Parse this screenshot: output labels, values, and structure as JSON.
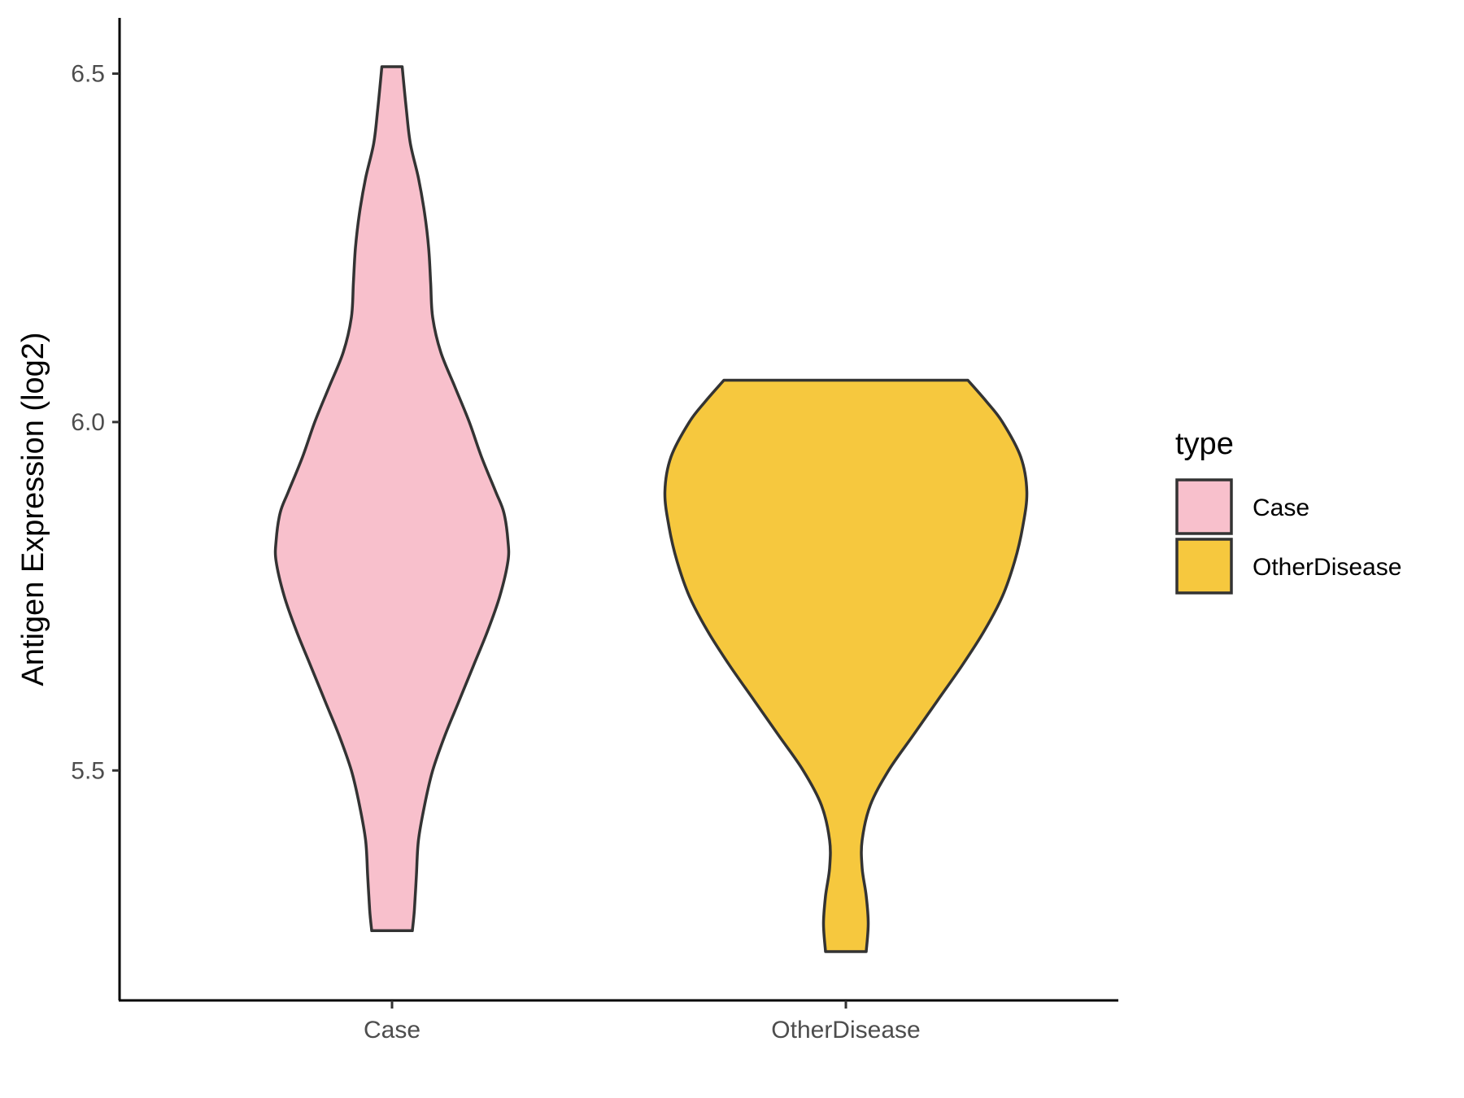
{
  "chart_data": {
    "type": "violin",
    "ylabel": "Antigen Expression (log2)",
    "xlabel": "",
    "ylim": [
      5.17,
      6.58
    ],
    "yticks": [
      5.5,
      6.0,
      6.5
    ],
    "ytick_labels": [
      "5.5",
      "6.0",
      "6.5"
    ],
    "categories": [
      "Case",
      "OtherDisease"
    ],
    "legend": {
      "title": "type",
      "position": "right",
      "entries": [
        {
          "label": "Case",
          "color": "#f8c0cc"
        },
        {
          "label": "OtherDisease",
          "color": "#f6c83e"
        }
      ]
    },
    "series": [
      {
        "category": "Case",
        "color": "#f8c0cc",
        "range": [
          5.27,
          6.51
        ],
        "density": [
          [
            5.27,
            0.1
          ],
          [
            5.3,
            0.11
          ],
          [
            5.35,
            0.12
          ],
          [
            5.4,
            0.13
          ],
          [
            5.45,
            0.16
          ],
          [
            5.5,
            0.2
          ],
          [
            5.55,
            0.26
          ],
          [
            5.6,
            0.33
          ],
          [
            5.65,
            0.4
          ],
          [
            5.7,
            0.47
          ],
          [
            5.75,
            0.53
          ],
          [
            5.8,
            0.57
          ],
          [
            5.83,
            0.57
          ],
          [
            5.87,
            0.55
          ],
          [
            5.9,
            0.51
          ],
          [
            5.95,
            0.44
          ],
          [
            6.0,
            0.38
          ],
          [
            6.05,
            0.31
          ],
          [
            6.1,
            0.24
          ],
          [
            6.15,
            0.2
          ],
          [
            6.2,
            0.19
          ],
          [
            6.25,
            0.18
          ],
          [
            6.3,
            0.16
          ],
          [
            6.35,
            0.13
          ],
          [
            6.4,
            0.09
          ],
          [
            6.45,
            0.07
          ],
          [
            6.51,
            0.05
          ]
        ]
      },
      {
        "category": "OtherDisease",
        "color": "#f6c83e",
        "range": [
          5.24,
          6.06
        ],
        "density": [
          [
            5.24,
            0.1
          ],
          [
            5.28,
            0.11
          ],
          [
            5.32,
            0.1
          ],
          [
            5.36,
            0.08
          ],
          [
            5.4,
            0.08
          ],
          [
            5.45,
            0.12
          ],
          [
            5.5,
            0.21
          ],
          [
            5.55,
            0.33
          ],
          [
            5.6,
            0.45
          ],
          [
            5.65,
            0.57
          ],
          [
            5.7,
            0.68
          ],
          [
            5.75,
            0.77
          ],
          [
            5.8,
            0.83
          ],
          [
            5.85,
            0.87
          ],
          [
            5.9,
            0.89
          ],
          [
            5.95,
            0.86
          ],
          [
            6.0,
            0.77
          ],
          [
            6.03,
            0.69
          ],
          [
            6.06,
            0.6
          ]
        ]
      }
    ]
  }
}
